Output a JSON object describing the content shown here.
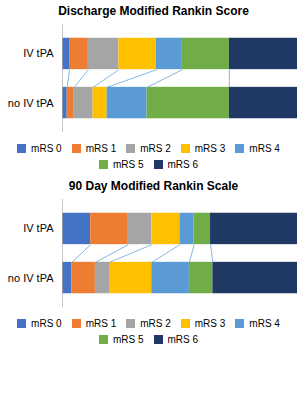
{
  "chart_data": [
    {
      "type": "bar",
      "orientation": "horizontal",
      "stacked": true,
      "title": "Discharge Modified Rankin Score",
      "categories": [
        "IV tPA",
        "no IV tPA"
      ],
      "series": [
        {
          "name": "mRS 0",
          "color": "#4472C4",
          "values": [
            0.03,
            0.02
          ]
        },
        {
          "name": "mRS 1",
          "color": "#ED7D31",
          "values": [
            0.08,
            0.03
          ]
        },
        {
          "name": "mRS 2",
          "color": "#A5A5A5",
          "values": [
            0.13,
            0.08
          ]
        },
        {
          "name": "mRS 3",
          "color": "#FFC000",
          "values": [
            0.16,
            0.06
          ]
        },
        {
          "name": "mRS 4",
          "color": "#5B9BD5",
          "values": [
            0.11,
            0.17
          ]
        },
        {
          "name": "mRS 5",
          "color": "#70AD47",
          "values": [
            0.2,
            0.35
          ]
        },
        {
          "name": "mRS 6",
          "color": "#1F3864",
          "values": [
            0.29,
            0.29
          ]
        }
      ],
      "xlim": [
        0,
        1
      ],
      "tick_labels": "y",
      "legend": "bottom"
    },
    {
      "type": "bar",
      "orientation": "horizontal",
      "stacked": true,
      "title": "90 Day Modified Rankin Scale",
      "categories": [
        "IV tPA",
        "no IV tPA"
      ],
      "series": [
        {
          "name": "mRS 0",
          "color": "#4472C4",
          "values": [
            0.12,
            0.04
          ]
        },
        {
          "name": "mRS 1",
          "color": "#ED7D31",
          "values": [
            0.16,
            0.1
          ]
        },
        {
          "name": "mRS 2",
          "color": "#A5A5A5",
          "values": [
            0.1,
            0.06
          ]
        },
        {
          "name": "mRS 3",
          "color": "#FFC000",
          "values": [
            0.12,
            0.18
          ]
        },
        {
          "name": "mRS 4",
          "color": "#5B9BD5",
          "values": [
            0.06,
            0.16
          ]
        },
        {
          "name": "mRS 5",
          "color": "#70AD47",
          "values": [
            0.07,
            0.1
          ]
        },
        {
          "name": "mRS 6",
          "color": "#1F3864",
          "values": [
            0.37,
            0.36
          ]
        }
      ],
      "xlim": [
        0,
        1
      ],
      "tick_labels": "y",
      "legend": "bottom"
    }
  ]
}
